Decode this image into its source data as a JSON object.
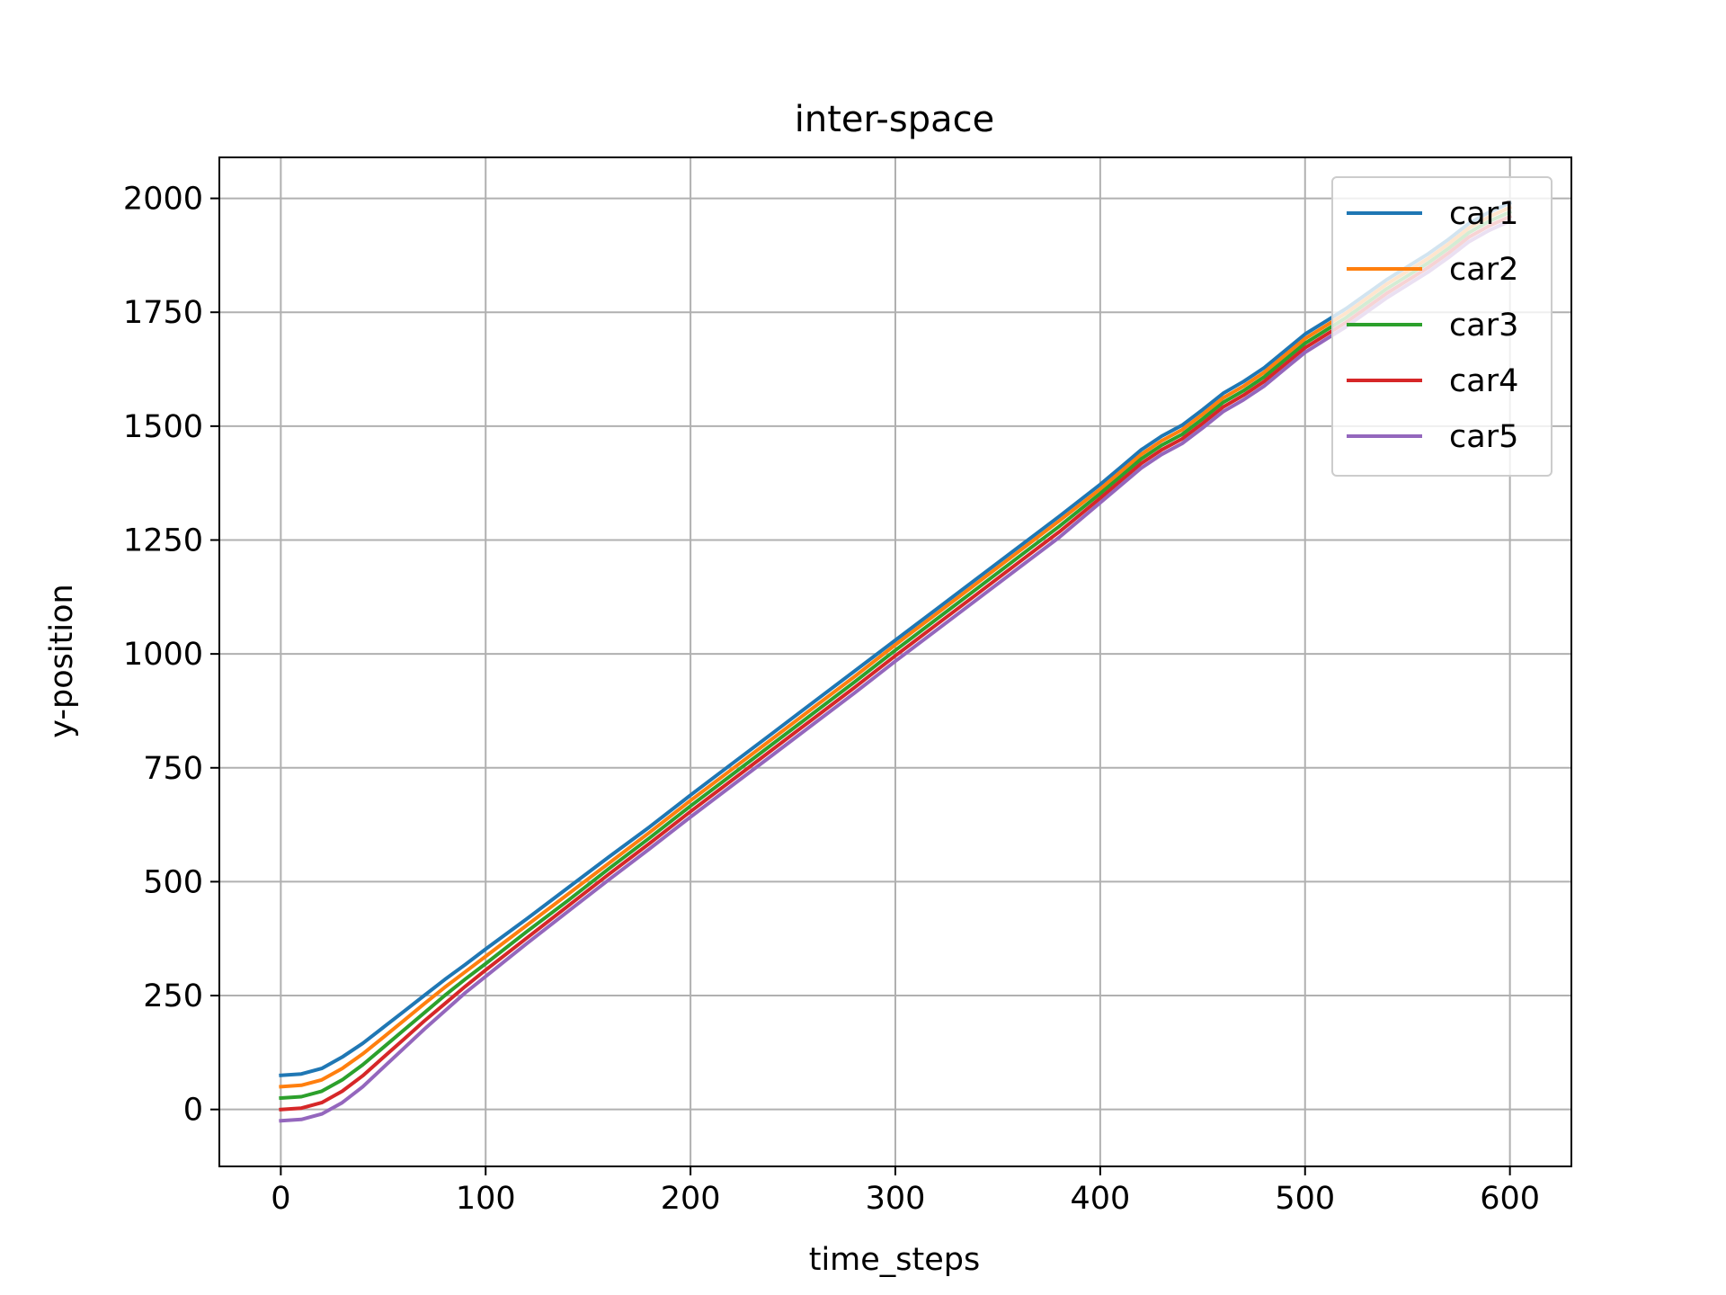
{
  "chart_data": {
    "type": "line",
    "title": "inter-space",
    "xlabel": "time_steps",
    "ylabel": "y-position",
    "xlim": [
      -30,
      630
    ],
    "ylim": [
      -125,
      2090
    ],
    "xticks": [
      0,
      100,
      200,
      300,
      400,
      500,
      600
    ],
    "yticks": [
      0,
      250,
      500,
      750,
      1000,
      1250,
      1500,
      1750,
      2000
    ],
    "grid": true,
    "legend_position": "top-right",
    "x": [
      0,
      10,
      20,
      30,
      40,
      50,
      60,
      70,
      80,
      90,
      100,
      120,
      140,
      160,
      180,
      200,
      220,
      240,
      260,
      280,
      300,
      320,
      340,
      360,
      380,
      400,
      410,
      420,
      430,
      440,
      450,
      460,
      470,
      480,
      490,
      500,
      510,
      520,
      530,
      540,
      550,
      560,
      570,
      580,
      590,
      600
    ],
    "series": [
      {
        "name": "car1",
        "color": "#1f77b4",
        "values": [
          75,
          78,
          90,
          115,
          145,
          180,
          215,
          250,
          285,
          318,
          352,
          418,
          486,
          554,
          620,
          690,
          758,
          826,
          894,
          962,
          1030,
          1098,
          1166,
          1234,
          1302,
          1372,
          1410,
          1448,
          1478,
          1502,
          1536,
          1572,
          1598,
          1628,
          1665,
          1702,
          1730,
          1758,
          1790,
          1822,
          1850,
          1878,
          1910,
          1945,
          1970,
          1990
        ]
      },
      {
        "name": "car2",
        "color": "#ff7f0e",
        "values": [
          50,
          53,
          65,
          90,
          122,
          158,
          195,
          232,
          268,
          302,
          336,
          404,
          472,
          540,
          608,
          678,
          746,
          814,
          882,
          950,
          1020,
          1088,
          1156,
          1224,
          1292,
          1362,
          1400,
          1438,
          1468,
          1492,
          1526,
          1562,
          1588,
          1618,
          1655,
          1692,
          1720,
          1748,
          1780,
          1812,
          1840,
          1868,
          1900,
          1935,
          1960,
          1980
        ]
      },
      {
        "name": "car3",
        "color": "#2ca02c",
        "values": [
          25,
          28,
          40,
          65,
          98,
          136,
          174,
          212,
          250,
          286,
          320,
          390,
          458,
          528,
          596,
          666,
          734,
          802,
          870,
          938,
          1008,
          1076,
          1144,
          1212,
          1280,
          1352,
          1390,
          1428,
          1458,
          1482,
          1516,
          1552,
          1578,
          1608,
          1645,
          1682,
          1710,
          1738,
          1770,
          1802,
          1830,
          1858,
          1890,
          1925,
          1950,
          1970
        ]
      },
      {
        "name": "car4",
        "color": "#d62728",
        "values": [
          0,
          3,
          15,
          40,
          74,
          114,
          154,
          194,
          232,
          270,
          306,
          376,
          446,
          516,
          584,
          654,
          722,
          790,
          858,
          926,
          996,
          1064,
          1132,
          1200,
          1268,
          1342,
          1380,
          1418,
          1448,
          1472,
          1506,
          1542,
          1568,
          1598,
          1635,
          1672,
          1700,
          1728,
          1760,
          1792,
          1820,
          1848,
          1880,
          1915,
          1940,
          1960
        ]
      },
      {
        "name": "car5",
        "color": "#9467bd",
        "values": [
          -25,
          -22,
          -10,
          15,
          50,
          92,
          134,
          176,
          216,
          256,
          292,
          364,
          434,
          504,
          572,
          642,
          710,
          778,
          846,
          914,
          984,
          1052,
          1120,
          1188,
          1256,
          1332,
          1370,
          1408,
          1438,
          1462,
          1496,
          1532,
          1558,
          1588,
          1625,
          1662,
          1690,
          1718,
          1750,
          1782,
          1810,
          1838,
          1870,
          1905,
          1930,
          1950
        ]
      }
    ]
  }
}
